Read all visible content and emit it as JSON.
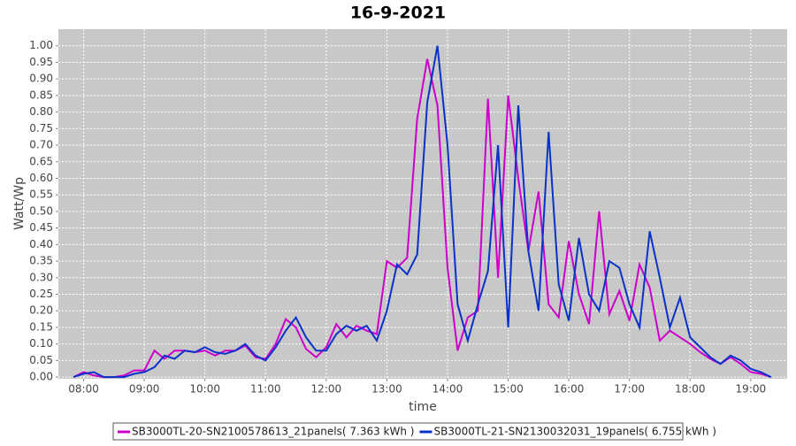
{
  "chart_data": {
    "type": "line",
    "title": "16-9-2021",
    "x_label": "time",
    "y_label": "Watt/Wp",
    "x": [
      470,
      480,
      490,
      500,
      510,
      520,
      530,
      540,
      550,
      560,
      570,
      580,
      590,
      600,
      610,
      620,
      630,
      640,
      650,
      660,
      670,
      680,
      690,
      700,
      710,
      720,
      730,
      740,
      750,
      760,
      770,
      780,
      790,
      800,
      810,
      820,
      830,
      840,
      850,
      860,
      870,
      880,
      890,
      900,
      910,
      920,
      930,
      940,
      950,
      960,
      970,
      980,
      990,
      1000,
      1010,
      1020,
      1030,
      1040,
      1050,
      1060,
      1070,
      1080,
      1090,
      1100,
      1110,
      1120,
      1130,
      1140,
      1150,
      1160
    ],
    "series": [
      {
        "name": "SB3000TL-20-SN2100578613_21panels( 7.363 kWh )",
        "color": "#cc00cc",
        "values": [
          0.0,
          0.015,
          0.005,
          0.0,
          0.0,
          0.005,
          0.02,
          0.02,
          0.08,
          0.055,
          0.08,
          0.08,
          0.075,
          0.08,
          0.065,
          0.08,
          0.08,
          0.095,
          0.06,
          0.055,
          0.1,
          0.175,
          0.15,
          0.085,
          0.06,
          0.09,
          0.16,
          0.12,
          0.155,
          0.14,
          0.13,
          0.35,
          0.33,
          0.36,
          0.78,
          0.96,
          0.82,
          0.33,
          0.08,
          0.18,
          0.2,
          0.84,
          0.3,
          0.85,
          0.6,
          0.38,
          0.56,
          0.22,
          0.18,
          0.41,
          0.25,
          0.16,
          0.5,
          0.19,
          0.26,
          0.17,
          0.34,
          0.27,
          0.11,
          0.14,
          0.12,
          0.1,
          0.075,
          0.055,
          0.04,
          0.06,
          0.04,
          0.015,
          0.01,
          0.0
        ]
      },
      {
        "name": "SB3000TL-21-SN2130032031_19panels( 6.755 kWh )",
        "color": "#0a32c8",
        "values": [
          0.0,
          0.01,
          0.015,
          0.0,
          0.0,
          0.0,
          0.01,
          0.015,
          0.03,
          0.065,
          0.055,
          0.08,
          0.075,
          0.09,
          0.075,
          0.07,
          0.08,
          0.1,
          0.065,
          0.05,
          0.09,
          0.14,
          0.18,
          0.12,
          0.08,
          0.08,
          0.13,
          0.155,
          0.14,
          0.155,
          0.11,
          0.2,
          0.34,
          0.31,
          0.37,
          0.83,
          1.0,
          0.7,
          0.22,
          0.11,
          0.22,
          0.32,
          0.7,
          0.15,
          0.82,
          0.38,
          0.2,
          0.74,
          0.28,
          0.17,
          0.42,
          0.25,
          0.2,
          0.35,
          0.33,
          0.22,
          0.15,
          0.44,
          0.3,
          0.15,
          0.24,
          0.12,
          0.09,
          0.06,
          0.04,
          0.065,
          0.05,
          0.025,
          0.015,
          0.0
        ]
      }
    ],
    "xlim": [
      455,
      1176
    ],
    "xticks": [
      {
        "value": 480,
        "label": "08:00"
      },
      {
        "value": 540,
        "label": "09:00"
      },
      {
        "value": 600,
        "label": "10:00"
      },
      {
        "value": 660,
        "label": "11:00"
      },
      {
        "value": 720,
        "label": "12:00"
      },
      {
        "value": 780,
        "label": "13:00"
      },
      {
        "value": 840,
        "label": "14:00"
      },
      {
        "value": 900,
        "label": "15:00"
      },
      {
        "value": 960,
        "label": "16:00"
      },
      {
        "value": 1020,
        "label": "17:00"
      },
      {
        "value": 1080,
        "label": "18:00"
      },
      {
        "value": 1140,
        "label": "19:00"
      }
    ],
    "ylim": [
      -0.005,
      1.05
    ],
    "yticks": [
      {
        "value": 0,
        "label": "0.00"
      },
      {
        "value": 0.05,
        "label": "0.05"
      },
      {
        "value": 0.1,
        "label": "0.10"
      },
      {
        "value": 0.15,
        "label": "0.15"
      },
      {
        "value": 0.2,
        "label": "0.20"
      },
      {
        "value": 0.25,
        "label": "0.25"
      },
      {
        "value": 0.3,
        "label": "0.30"
      },
      {
        "value": 0.35,
        "label": "0.35"
      },
      {
        "value": 0.4,
        "label": "0.40"
      },
      {
        "value": 0.45,
        "label": "0.45"
      },
      {
        "value": 0.5,
        "label": "0.50"
      },
      {
        "value": 0.55,
        "label": "0.55"
      },
      {
        "value": 0.6,
        "label": "0.60"
      },
      {
        "value": 0.65,
        "label": "0.65"
      },
      {
        "value": 0.7,
        "label": "0.70"
      },
      {
        "value": 0.75,
        "label": "0.75"
      },
      {
        "value": 0.8,
        "label": "0.80"
      },
      {
        "value": 0.85,
        "label": "0.85"
      },
      {
        "value": 0.9,
        "label": "0.90"
      },
      {
        "value": 0.95,
        "label": "0.95"
      },
      {
        "value": 1,
        "label": "1.00"
      }
    ],
    "grid": true
  }
}
